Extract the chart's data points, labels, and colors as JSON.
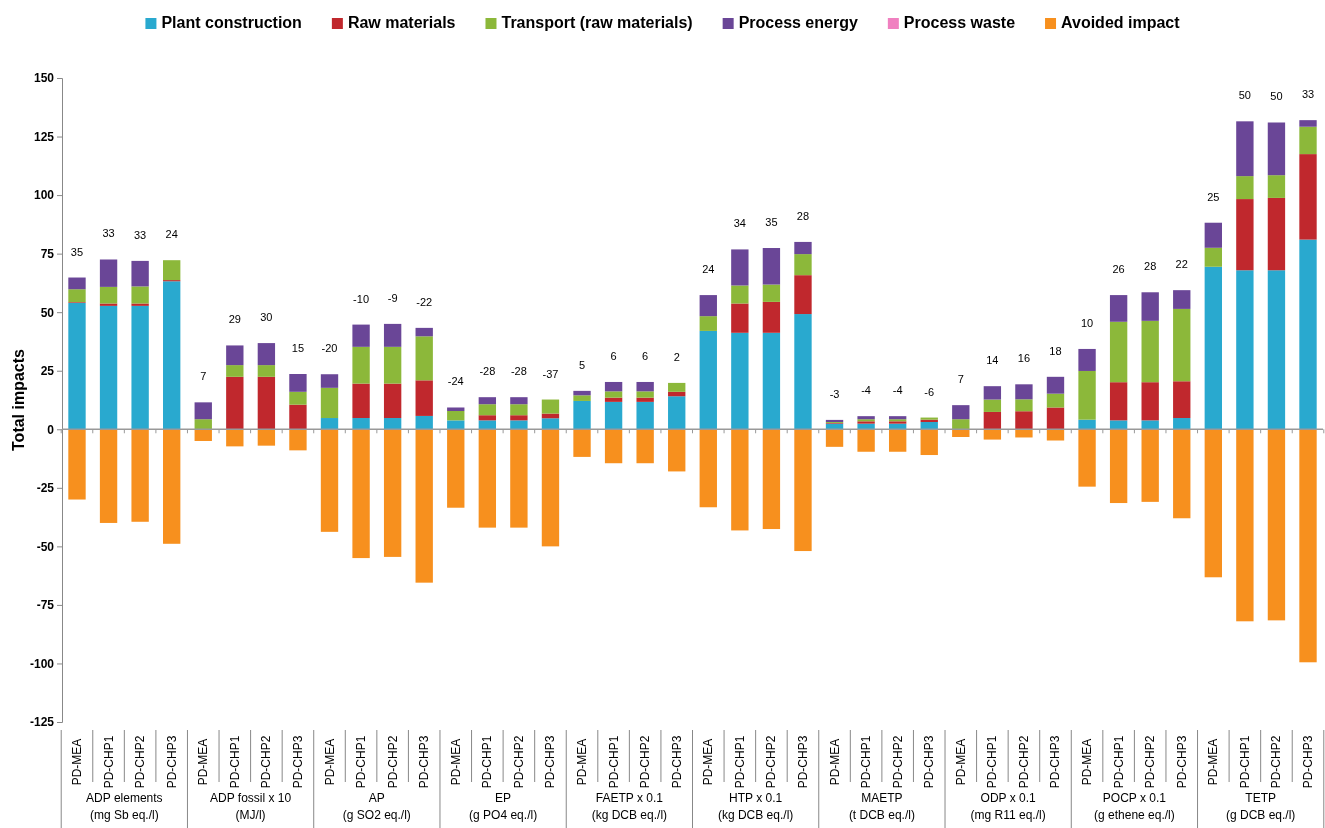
{
  "chart_data": {
    "type": "bar",
    "stacked": true,
    "ylabel": "Total impacts",
    "categories": [
      "PD-MEA",
      "PD-CHP1",
      "PD-CHP2",
      "PD-CHP3",
      "PD-MEA",
      "PD-CHP1",
      "PD-CHP2",
      "PD-CHP3",
      "PD-MEA",
      "PD-CHP1",
      "PD-CHP2",
      "PD-CHP3",
      "PD-MEA",
      "PD-CHP1",
      "PD-CHP2",
      "PD-CHP3",
      "PD-MEA",
      "PD-CHP1",
      "PD-CHP2",
      "PD-CHP3",
      "PD-MEA",
      "PD-CHP1",
      "PD-CHP2",
      "PD-CHP3",
      "PD-MEA",
      "PD-CHP1",
      "PD-CHP2",
      "PD-CHP3",
      "PD-MEA",
      "PD-CHP1",
      "PD-CHP2",
      "PD-CHP3",
      "PD-MEA",
      "PD-CHP1",
      "PD-CHP2",
      "PD-CHP3",
      "PD-MEA",
      "PD-CHP1",
      "PD-CHP2",
      "PD-CHP3"
    ],
    "series": [
      {
        "name": "Plant construction",
        "color": "#29a9cf",
        "values": [
          54,
          52.7,
          52.7,
          63.2,
          0,
          0,
          0,
          0,
          4.8,
          4.8,
          4.8,
          5.7,
          3.8,
          3.8,
          3.8,
          4.7,
          12.1,
          11.7,
          11.7,
          14.1,
          42,
          41.2,
          41.2,
          49.2,
          2.4,
          2.4,
          2.4,
          3.1,
          0,
          0,
          0,
          0,
          4.1,
          3.8,
          3.8,
          4.8,
          69.4,
          67.9,
          67.9,
          81
        ]
      },
      {
        "name": "Raw materials",
        "color": "#c0282d",
        "values": [
          0.3,
          1,
          1,
          0.5,
          0,
          22.4,
          22.4,
          10.5,
          0,
          14.7,
          14.7,
          15.2,
          0,
          2.2,
          2.2,
          2,
          0,
          1.8,
          1.8,
          1.9,
          0,
          12.5,
          13.2,
          16.6,
          0.3,
          1,
          1,
          1,
          0,
          7.4,
          7.7,
          9.3,
          0,
          16.3,
          16.3,
          15.7,
          0,
          30.4,
          30.9,
          36.5
        ]
      },
      {
        "name": "Transport (raw materials)",
        "color": "#8cb83a",
        "values": [
          5.5,
          7.1,
          7.3,
          8.5,
          4.3,
          5,
          5,
          5.5,
          12.9,
          15.7,
          15.7,
          18.8,
          4,
          4.7,
          4.7,
          6,
          2.4,
          2.7,
          2.7,
          3.8,
          6.3,
          7.7,
          7.4,
          9,
          0.4,
          0.9,
          0.9,
          0.9,
          4.3,
          5.3,
          5.1,
          5.9,
          20.8,
          25.8,
          26.2,
          30.9,
          8.1,
          9.8,
          9.7,
          11.7
        ]
      },
      {
        "name": "Process energy",
        "color": "#6a4697",
        "values": [
          5,
          11.7,
          10.9,
          0,
          7.2,
          8.4,
          9.4,
          7.6,
          5.8,
          9.5,
          9.8,
          3.6,
          1.5,
          3,
          3,
          0,
          1.9,
          4,
          4,
          0,
          9,
          15.4,
          15.6,
          5.2,
          0.9,
          1.3,
          1.3,
          0,
          6,
          5.7,
          6.4,
          7.2,
          9.4,
          11.4,
          12.2,
          8,
          10.7,
          23.4,
          22.5,
          2.8
        ]
      },
      {
        "name": "Process waste",
        "color": "#f080c0",
        "values": [
          0,
          0,
          0,
          0,
          0,
          0,
          0,
          0,
          0,
          0,
          0,
          0,
          0,
          0,
          0,
          0,
          0,
          0,
          0,
          0,
          0,
          0,
          0,
          0,
          0,
          0,
          0,
          0,
          0,
          0,
          0,
          0,
          0,
          0,
          0,
          0,
          0,
          0,
          0,
          0
        ]
      },
      {
        "name": "Avoided impact",
        "color": "#f7901e",
        "values": [
          -30,
          -40,
          -39.5,
          -48.9,
          -5,
          -7.3,
          -7,
          -9,
          -43.8,
          -55,
          -54.5,
          -65.5,
          -33.5,
          -42,
          -42,
          -50,
          -11.8,
          -14.5,
          -14.5,
          -18,
          -33.3,
          -43.2,
          -42.6,
          -52,
          -7.5,
          -9.6,
          -9.6,
          -11,
          -3.3,
          -4.4,
          -3.5,
          -4.8,
          -24.5,
          -31.5,
          -31,
          -38,
          -63.2,
          -82,
          -81.6,
          -99.5
        ]
      }
    ],
    "totals": [
      "35",
      "33",
      "33",
      "24",
      "7",
      "29",
      "30",
      "15",
      "-20",
      "-10",
      "-9",
      "-22",
      "-24",
      "-28",
      "-28",
      "-37",
      "5",
      "6",
      "6",
      "2",
      "24",
      "34",
      "35",
      "28",
      "-3",
      "-4",
      "-4",
      "-6",
      "7",
      "14",
      "16",
      "18",
      "10",
      "26",
      "28",
      "22",
      "25",
      "50",
      "50",
      "33"
    ],
    "annotations": [
      "ADP elements\n(mg Sb eq./l)",
      "ADP fossil x 10\n(MJ/l)",
      "AP\n(g SO2 eq./l)",
      "EP\n(g PO4 eq./l)",
      "FAETP x 0.1\n(kg DCB eq./l)",
      "HTP x 0.1\n(kg DCB eq./l)",
      "MAETP\n(t DCB eq./l)",
      "ODP x 0.1\n(mg R11 eq./l)",
      "POCP x 0.1\n(g ethene eq./l)",
      "TETP\n(g DCB eq./l)"
    ],
    "ylim": [
      -125,
      150
    ],
    "yticks": [
      -125,
      -100,
      -75,
      -50,
      -25,
      0,
      25,
      50,
      75,
      100,
      125,
      150
    ],
    "legend": "top"
  }
}
